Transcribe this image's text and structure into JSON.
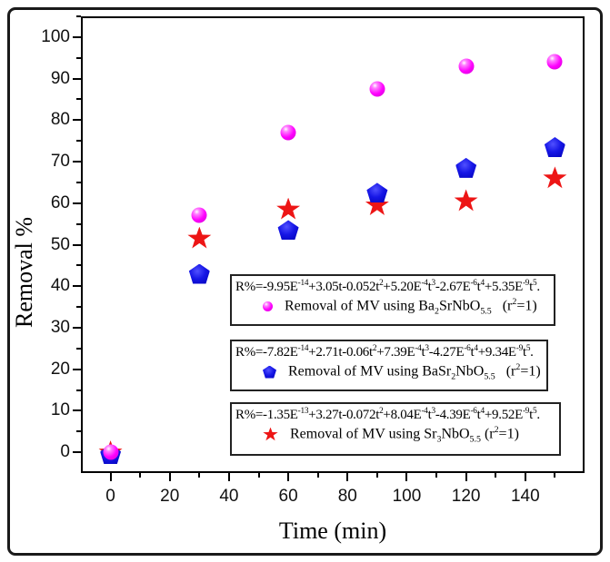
{
  "figure": {
    "xlabel": "Time (min)",
    "ylabel": "Removal %"
  },
  "chart_data": {
    "type": "scatter",
    "title": "",
    "xlabel": "Time (min)",
    "ylabel": "Removal %",
    "xlim": [
      -10,
      160
    ],
    "ylim": [
      -5,
      105
    ],
    "grid": false,
    "x": [
      0,
      30,
      60,
      90,
      120,
      150
    ],
    "series": [
      {
        "name": "Removal of MV using Ba2SrNbO5.5",
        "marker": "circle",
        "color": "#ff00ff",
        "values": [
          0,
          57,
          77,
          87.5,
          93,
          94
        ]
      },
      {
        "name": "Removal of MV using BaSr2NbO5.5",
        "marker": "pentagon",
        "color": "#1616e6",
        "values": [
          -0.5,
          43,
          53.5,
          62.5,
          68.5,
          73.5
        ]
      },
      {
        "name": "Removal of MV using Sr3NbO5.5",
        "marker": "star",
        "color": "#ed1515",
        "values": [
          0,
          51.5,
          58.5,
          59.5,
          60.5,
          66
        ]
      }
    ],
    "x_major_ticks": [
      0,
      20,
      40,
      60,
      80,
      100,
      120,
      140
    ],
    "x_minor_ticks": [
      10,
      30,
      50,
      70,
      90,
      110,
      130,
      150
    ],
    "y_major_ticks": [
      0,
      10,
      20,
      30,
      40,
      50,
      60,
      70,
      80,
      90,
      100
    ],
    "y_minor_ticks": [
      5,
      15,
      25,
      35,
      45,
      55,
      65,
      75,
      85,
      95,
      105
    ],
    "legend_position": "inside lower-right, three stacked boxes"
  },
  "legend": [
    {
      "marker": "circle",
      "r_squared": "1",
      "equation": [
        {
          "t": "txt",
          "v": "R%=-9.95E"
        },
        {
          "t": "sup",
          "v": "-14"
        },
        {
          "t": "txt",
          "v": "+3.05t-0.052t"
        },
        {
          "t": "sup",
          "v": "2"
        },
        {
          "t": "txt",
          "v": "+5.20E"
        },
        {
          "t": "sup",
          "v": "-4"
        },
        {
          "t": "txt",
          "v": "t"
        },
        {
          "t": "sup",
          "v": "3"
        },
        {
          "t": "txt",
          "v": "-2.67E"
        },
        {
          "t": "sup",
          "v": "-6"
        },
        {
          "t": "txt",
          "v": "t"
        },
        {
          "t": "sup",
          "v": "4"
        },
        {
          "t": "txt",
          "v": "+5.35E"
        },
        {
          "t": "sup",
          "v": "-9"
        },
        {
          "t": "txt",
          "v": "t"
        },
        {
          "t": "sup",
          "v": "5"
        },
        {
          "t": "txt",
          "v": "."
        }
      ],
      "entry": [
        {
          "t": "txt",
          "v": "Removal of MV using Ba"
        },
        {
          "t": "sub",
          "v": "2"
        },
        {
          "t": "txt",
          "v": "SrNbO"
        },
        {
          "t": "sub",
          "v": "5.5"
        },
        {
          "t": "txt",
          "v": "   (r"
        },
        {
          "t": "sup",
          "v": "2"
        },
        {
          "t": "txt",
          "v": "=1)"
        }
      ]
    },
    {
      "marker": "pentagon",
      "r_squared": "1",
      "equation": [
        {
          "t": "txt",
          "v": "R%=-7.82E"
        },
        {
          "t": "sup",
          "v": "-14"
        },
        {
          "t": "txt",
          "v": "+2.71t-0.06t"
        },
        {
          "t": "sup",
          "v": "2"
        },
        {
          "t": "txt",
          "v": "+7.39E"
        },
        {
          "t": "sup",
          "v": "-4"
        },
        {
          "t": "txt",
          "v": "t"
        },
        {
          "t": "sup",
          "v": "3"
        },
        {
          "t": "txt",
          "v": "-4.27E"
        },
        {
          "t": "sup",
          "v": "-6"
        },
        {
          "t": "txt",
          "v": "t"
        },
        {
          "t": "sup",
          "v": "4"
        },
        {
          "t": "txt",
          "v": "+9.34E"
        },
        {
          "t": "sup",
          "v": "-9"
        },
        {
          "t": "txt",
          "v": "t"
        },
        {
          "t": "sup",
          "v": "5"
        },
        {
          "t": "txt",
          "v": "."
        }
      ],
      "entry": [
        {
          "t": "txt",
          "v": "Removal of MV using BaSr"
        },
        {
          "t": "sub",
          "v": "2"
        },
        {
          "t": "txt",
          "v": "NbO"
        },
        {
          "t": "sub",
          "v": "5.5"
        },
        {
          "t": "txt",
          "v": "   (r"
        },
        {
          "t": "sup",
          "v": "2"
        },
        {
          "t": "txt",
          "v": "=1)"
        }
      ]
    },
    {
      "marker": "star",
      "r_squared": "1",
      "equation": [
        {
          "t": "txt",
          "v": "R%=-1.35E"
        },
        {
          "t": "sup",
          "v": "-13"
        },
        {
          "t": "txt",
          "v": "+3.27t-0.072t"
        },
        {
          "t": "sup",
          "v": "2"
        },
        {
          "t": "txt",
          "v": "+8.04E"
        },
        {
          "t": "sup",
          "v": "-4"
        },
        {
          "t": "txt",
          "v": "t"
        },
        {
          "t": "sup",
          "v": "3"
        },
        {
          "t": "txt",
          "v": "-4.39E"
        },
        {
          "t": "sup",
          "v": "-6"
        },
        {
          "t": "txt",
          "v": "t"
        },
        {
          "t": "sup",
          "v": "4"
        },
        {
          "t": "txt",
          "v": "+9.52E"
        },
        {
          "t": "sup",
          "v": "-9"
        },
        {
          "t": "txt",
          "v": "t"
        },
        {
          "t": "sup",
          "v": "5"
        },
        {
          "t": "txt",
          "v": "."
        }
      ],
      "entry": [
        {
          "t": "txt",
          "v": "Removal of MV using Sr"
        },
        {
          "t": "sub",
          "v": "3"
        },
        {
          "t": "txt",
          "v": "NbO"
        },
        {
          "t": "sub",
          "v": "5.5"
        },
        {
          "t": "txt",
          "v": " (r"
        },
        {
          "t": "sup",
          "v": "2"
        },
        {
          "t": "txt",
          "v": "=1)"
        }
      ]
    }
  ]
}
